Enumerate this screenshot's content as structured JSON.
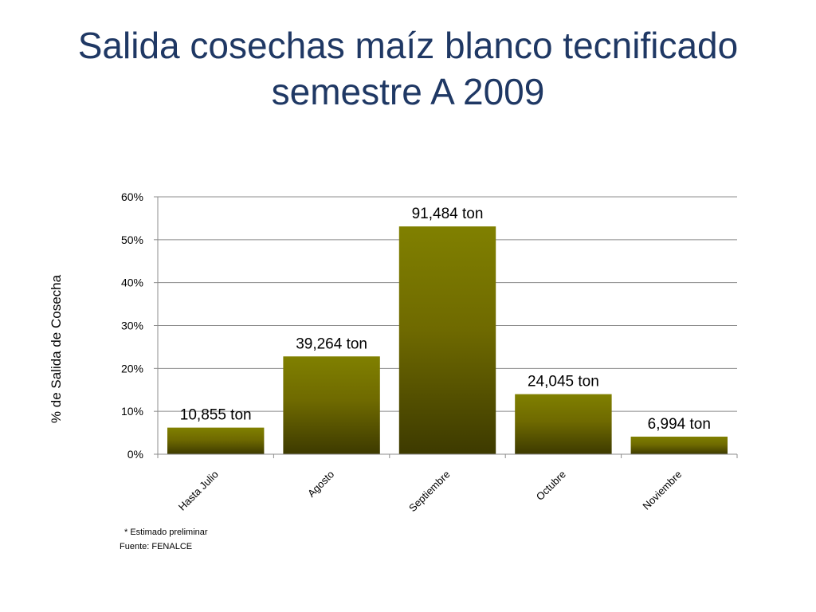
{
  "chart_data": {
    "type": "bar",
    "title": "Salida cosechas maíz blanco tecnificado semestre A 2009",
    "ylabel": "% de Salida de Cosecha",
    "xlabel": "",
    "categories": [
      "Hasta Julio",
      "Agosto",
      "Septiembre",
      "Octubre",
      "Noviembre"
    ],
    "values": [
      0.062,
      0.228,
      0.531,
      0.14,
      0.041
    ],
    "data_labels": [
      "10,855 ton",
      "39,264 ton",
      "91,484 ton",
      "24,045 ton",
      "6,994 ton"
    ],
    "yticks": [
      "0%",
      "10%",
      "20%",
      "30%",
      "40%",
      "50%",
      "60%"
    ],
    "ylim": [
      0,
      0.6
    ],
    "grid": true,
    "bar_color_top": "#808000",
    "bar_color_bottom": "#3d3a00"
  },
  "footnotes": {
    "estimate": "* Estimado preliminar",
    "source": "Fuente: FENALCE"
  }
}
